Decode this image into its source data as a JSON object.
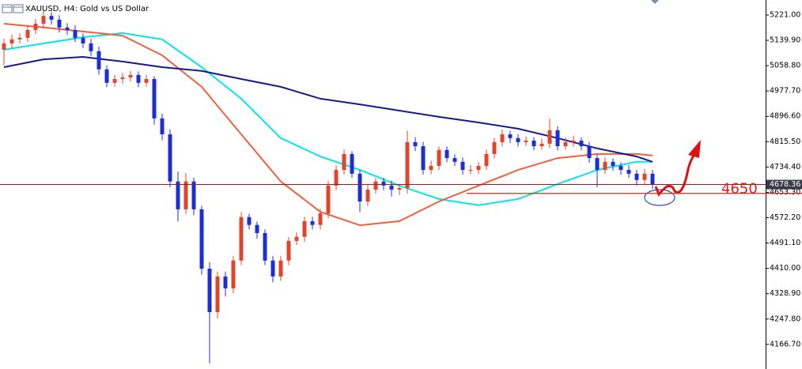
{
  "chart_data": {
    "type": "candlestick",
    "title": "XAUUSD, H4:  Gold vs US Dollar",
    "ylim": [
      4098,
      5269
    ],
    "yticks": [
      {
        "value": 5221,
        "label": "5221.00"
      },
      {
        "value": 5139.9,
        "label": "5139.90"
      },
      {
        "value": 5058.8,
        "label": "5058.80"
      },
      {
        "value": 4977.7,
        "label": "4977.70"
      },
      {
        "value": 4896.6,
        "label": "4896.60"
      },
      {
        "value": 4815.5,
        "label": "4815.50"
      },
      {
        "value": 4734.4,
        "label": "4734.40"
      },
      {
        "value": 4653.3,
        "label": "4653.30"
      },
      {
        "value": 4572.2,
        "label": "4572.20"
      },
      {
        "value": 4491.1,
        "label": "4491.10"
      },
      {
        "value": 4410,
        "label": "4410.00"
      },
      {
        "value": 4328.9,
        "label": "4328.90"
      },
      {
        "value": 4247.8,
        "label": "4247.80"
      },
      {
        "value": 4166.7,
        "label": "4166.70"
      }
    ],
    "up_color": "#e0442c",
    "down_color": "#1c2fd6",
    "open": [
      5110,
      5130,
      5143,
      5148,
      5173,
      5193,
      5218,
      5206,
      5181,
      5173,
      5148,
      5130,
      5105,
      5047,
      5004,
      5016,
      5021,
      5029,
      5004,
      5016,
      4890,
      4839,
      4688,
      4599,
      4688,
      4599,
      4409,
      4270,
      4384,
      4346,
      4435,
      4574,
      4549,
      4523,
      4435,
      4384,
      4435,
      4498,
      4511,
      4561,
      4549,
      4586,
      4675,
      4725,
      4776,
      4713,
      4624,
      4662,
      4688,
      4675,
      4662,
      4667,
      4814,
      4801,
      4725,
      4738,
      4789,
      4763,
      4751,
      4725,
      4725,
      4738,
      4776,
      4814,
      4839,
      4827,
      4814,
      4819,
      4801,
      4809,
      4852,
      4801,
      4814,
      4819,
      4801,
      4763,
      4725,
      4751,
      4738,
      4725,
      4713,
      4693,
      4713
    ],
    "high": [
      5145,
      5158,
      5163,
      5188,
      5208,
      5235,
      5230,
      5220,
      5195,
      5188,
      5162,
      5145,
      5120,
      5060,
      5030,
      5035,
      5042,
      5040,
      5030,
      5025,
      4905,
      4855,
      4720,
      4715,
      4700,
      4610,
      4430,
      4400,
      4400,
      4450,
      4590,
      4585,
      4560,
      4535,
      4450,
      4450,
      4510,
      4525,
      4575,
      4575,
      4600,
      4690,
      4740,
      4790,
      4785,
      4725,
      4680,
      4700,
      4700,
      4690,
      4680,
      4850,
      4830,
      4815,
      4755,
      4800,
      4800,
      4775,
      4765,
      4740,
      4750,
      4790,
      4828,
      4855,
      4850,
      4840,
      4832,
      4830,
      4825,
      4890,
      4865,
      4830,
      4835,
      4830,
      4815,
      4775,
      4765,
      4762,
      4750,
      4740,
      4725,
      4728,
      4725
    ],
    "low": [
      5060,
      5115,
      5130,
      5135,
      5160,
      5180,
      5190,
      5165,
      5158,
      5135,
      5115,
      5090,
      5030,
      4990,
      4992,
      5002,
      5008,
      4990,
      4992,
      4870,
      4820,
      4670,
      4560,
      4585,
      4580,
      4390,
      4106,
      4250,
      4320,
      4330,
      4420,
      4535,
      4505,
      4420,
      4365,
      4370,
      4420,
      4485,
      4495,
      4535,
      4535,
      4570,
      4660,
      4710,
      4700,
      4590,
      4610,
      4650,
      4660,
      4640,
      4645,
      4650,
      4785,
      4710,
      4712,
      4725,
      4750,
      4738,
      4710,
      4712,
      4712,
      4725,
      4762,
      4800,
      4812,
      4800,
      4802,
      4788,
      4790,
      4795,
      4788,
      4790,
      4800,
      4788,
      4748,
      4670,
      4712,
      4722,
      4710,
      4700,
      4675,
      4680,
      4665
    ],
    "close": [
      5130,
      5143,
      5148,
      5173,
      5193,
      5218,
      5206,
      5181,
      5173,
      5148,
      5130,
      5105,
      5047,
      5004,
      5016,
      5021,
      5029,
      5004,
      5016,
      4890,
      4839,
      4688,
      4599,
      4688,
      4599,
      4409,
      4270,
      4384,
      4346,
      4435,
      4574,
      4549,
      4523,
      4435,
      4384,
      4435,
      4498,
      4511,
      4561,
      4549,
      4586,
      4675,
      4725,
      4776,
      4713,
      4624,
      4662,
      4688,
      4675,
      4662,
      4667,
      4814,
      4801,
      4725,
      4738,
      4789,
      4763,
      4751,
      4725,
      4725,
      4738,
      4776,
      4814,
      4839,
      4827,
      4814,
      4819,
      4801,
      4809,
      4852,
      4801,
      4814,
      4819,
      4801,
      4763,
      4725,
      4751,
      4738,
      4725,
      4713,
      4693,
      4713,
      4678
    ],
    "lines": [
      {
        "color": "#00e5ee",
        "x": [
          0,
          5,
          10,
          15,
          20,
          25,
          30,
          35,
          40,
          45,
          50,
          55,
          60,
          65,
          70,
          75,
          80,
          82
        ],
        "values": [
          5110,
          5130,
          5150,
          5163,
          5143,
          5054,
          4953,
          4827,
          4768,
          4725,
          4675,
          4632,
          4612,
          4632,
          4680,
          4725,
          4751,
          4751
        ]
      },
      {
        "color": "#f0603c",
        "x": [
          0,
          5,
          10,
          15,
          20,
          25,
          30,
          35,
          40,
          45,
          50,
          55,
          60,
          65,
          70,
          75,
          80,
          82
        ],
        "values": [
          5193,
          5181,
          5168,
          5155,
          5092,
          4991,
          4839,
          4688,
          4591,
          4548,
          4561,
          4624,
          4675,
          4725,
          4763,
          4776,
          4776,
          4771
        ]
      },
      {
        "color": "#151a8c",
        "x": [
          0,
          5,
          10,
          15,
          20,
          25,
          30,
          35,
          40,
          45,
          50,
          55,
          60,
          65,
          70,
          75,
          80,
          82
        ],
        "values": [
          5054,
          5079,
          5087,
          5072,
          5054,
          5042,
          5016,
          4991,
          4953,
          4935,
          4915,
          4895,
          4877,
          4857,
          4827,
          4794,
          4768,
          4751
        ]
      }
    ],
    "price_line": {
      "value": 4678.36,
      "label": "4678.36",
      "color": "#9c1c1c"
    },
    "level": {
      "value": 4650,
      "label": "4650",
      "color": "#e02020"
    }
  }
}
